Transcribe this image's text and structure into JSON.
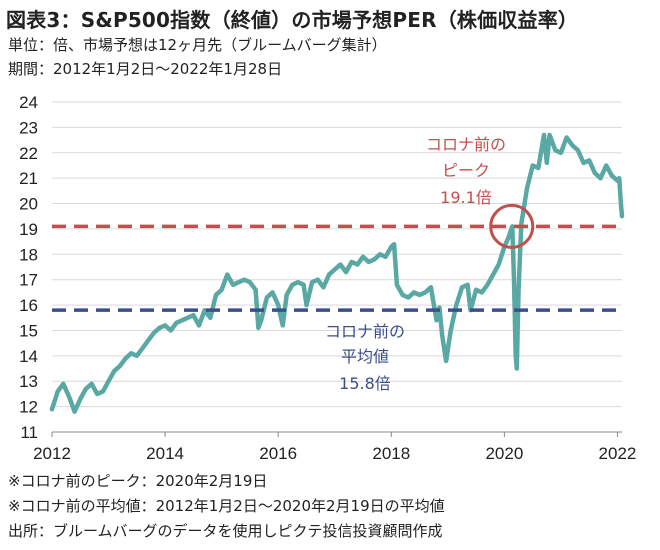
{
  "title": "図表3：S&P500指数（終値）の市場予想PER（株価収益率）",
  "unit_line": "単位：倍、市場予想は12ヶ月先（ブルームバーグ集計）",
  "period_line": "期間：2012年1月2日～2022年1月28日",
  "notes": [
    "※コロナ前のピーク：2020年2月19日",
    "※コロナ前の平均値：2012年1月2日～2020年2月19日の平均値",
    "出所：ブルームバーグのデータを使用しピクテ投信投資顧問作成"
  ],
  "colors": {
    "series": "#5aa8a3",
    "peak": "#c0504d",
    "average": "#3b4f8a",
    "grid": "#d9d9d9"
  },
  "chart_data": {
    "type": "line",
    "xlim": [
      2012,
      2022.08
    ],
    "ylim": [
      11,
      24
    ],
    "x_ticks": [
      "2012",
      "2014",
      "2016",
      "2018",
      "2020",
      "2022"
    ],
    "y_ticks": [
      "11",
      "12",
      "13",
      "14",
      "15",
      "16",
      "17",
      "18",
      "19",
      "20",
      "21",
      "22",
      "23",
      "24"
    ],
    "grid": "horizontal",
    "series": [
      {
        "x": [
          2012.0,
          2012.1,
          2012.2,
          2012.3,
          2012.4,
          2012.5,
          2012.6,
          2012.7,
          2012.8,
          2012.9,
          2013.0,
          2013.1,
          2013.2,
          2013.3,
          2013.4,
          2013.5,
          2013.6,
          2013.7,
          2013.8,
          2013.9,
          2014.0,
          2014.1,
          2014.2,
          2014.3,
          2014.4,
          2014.5,
          2014.6,
          2014.7,
          2014.8,
          2014.9,
          2015.0,
          2015.1,
          2015.2,
          2015.3,
          2015.4,
          2015.5,
          2015.6,
          2015.65,
          2015.7,
          2015.8,
          2015.9,
          2016.0,
          2016.08,
          2016.15,
          2016.25,
          2016.35,
          2016.45,
          2016.5,
          2016.6,
          2016.7,
          2016.8,
          2016.9,
          2017.0,
          2017.1,
          2017.2,
          2017.3,
          2017.4,
          2017.5,
          2017.6,
          2017.7,
          2017.8,
          2017.9,
          2018.0,
          2018.05,
          2018.1,
          2018.2,
          2018.3,
          2018.4,
          2018.5,
          2018.6,
          2018.7,
          2018.8,
          2018.85,
          2018.9,
          2018.97,
          2019.05,
          2019.15,
          2019.25,
          2019.35,
          2019.4,
          2019.5,
          2019.6,
          2019.7,
          2019.8,
          2019.9,
          2020.0,
          2020.08,
          2020.14,
          2020.17,
          2020.2,
          2020.22,
          2020.25,
          2020.3,
          2020.4,
          2020.5,
          2020.6,
          2020.7,
          2020.75,
          2020.8,
          2020.9,
          2021.0,
          2021.1,
          2021.2,
          2021.3,
          2021.4,
          2021.5,
          2021.6,
          2021.7,
          2021.8,
          2021.9,
          2022.0,
          2022.03,
          2022.06,
          2022.08
        ],
        "y": [
          11.9,
          12.6,
          12.9,
          12.4,
          11.8,
          12.3,
          12.7,
          12.9,
          12.5,
          12.6,
          13.0,
          13.4,
          13.6,
          13.9,
          14.1,
          14.0,
          14.3,
          14.6,
          14.9,
          15.1,
          15.2,
          15.0,
          15.3,
          15.4,
          15.5,
          15.6,
          15.2,
          15.8,
          15.5,
          16.4,
          16.6,
          17.2,
          16.8,
          16.9,
          17.0,
          16.9,
          16.6,
          15.1,
          15.4,
          16.3,
          16.5,
          16.0,
          15.2,
          16.4,
          16.8,
          16.9,
          16.8,
          16.0,
          16.9,
          17.0,
          16.7,
          17.2,
          17.4,
          17.6,
          17.3,
          17.7,
          17.6,
          17.9,
          17.7,
          17.8,
          18.0,
          17.9,
          18.3,
          18.4,
          16.8,
          16.4,
          16.3,
          16.5,
          16.4,
          16.5,
          16.7,
          15.4,
          15.9,
          14.8,
          13.8,
          15.0,
          16.0,
          16.7,
          16.8,
          15.8,
          16.6,
          16.5,
          16.8,
          17.2,
          17.6,
          18.3,
          18.7,
          19.1,
          17.0,
          14.0,
          13.5,
          16.5,
          19.2,
          20.6,
          21.5,
          21.4,
          22.7,
          21.6,
          22.7,
          22.1,
          22.0,
          22.6,
          22.3,
          22.1,
          21.6,
          21.7,
          21.2,
          21.0,
          21.5,
          21.1,
          20.9,
          21.0,
          20.0,
          19.5
        ]
      }
    ],
    "reference_lines": [
      {
        "value": 19.1,
        "style": "dashed"
      },
      {
        "value": 15.8,
        "style": "dashed"
      }
    ],
    "annotations": {
      "peak_line1": "コロナ前の",
      "peak_line2": "ピーク",
      "peak_value": "19.1倍",
      "avg_line1": "コロナ前の",
      "avg_line2": "平均値",
      "avg_value": "15.8倍"
    },
    "peak_marker": {
      "x": 2020.13,
      "y": 19.1
    }
  }
}
